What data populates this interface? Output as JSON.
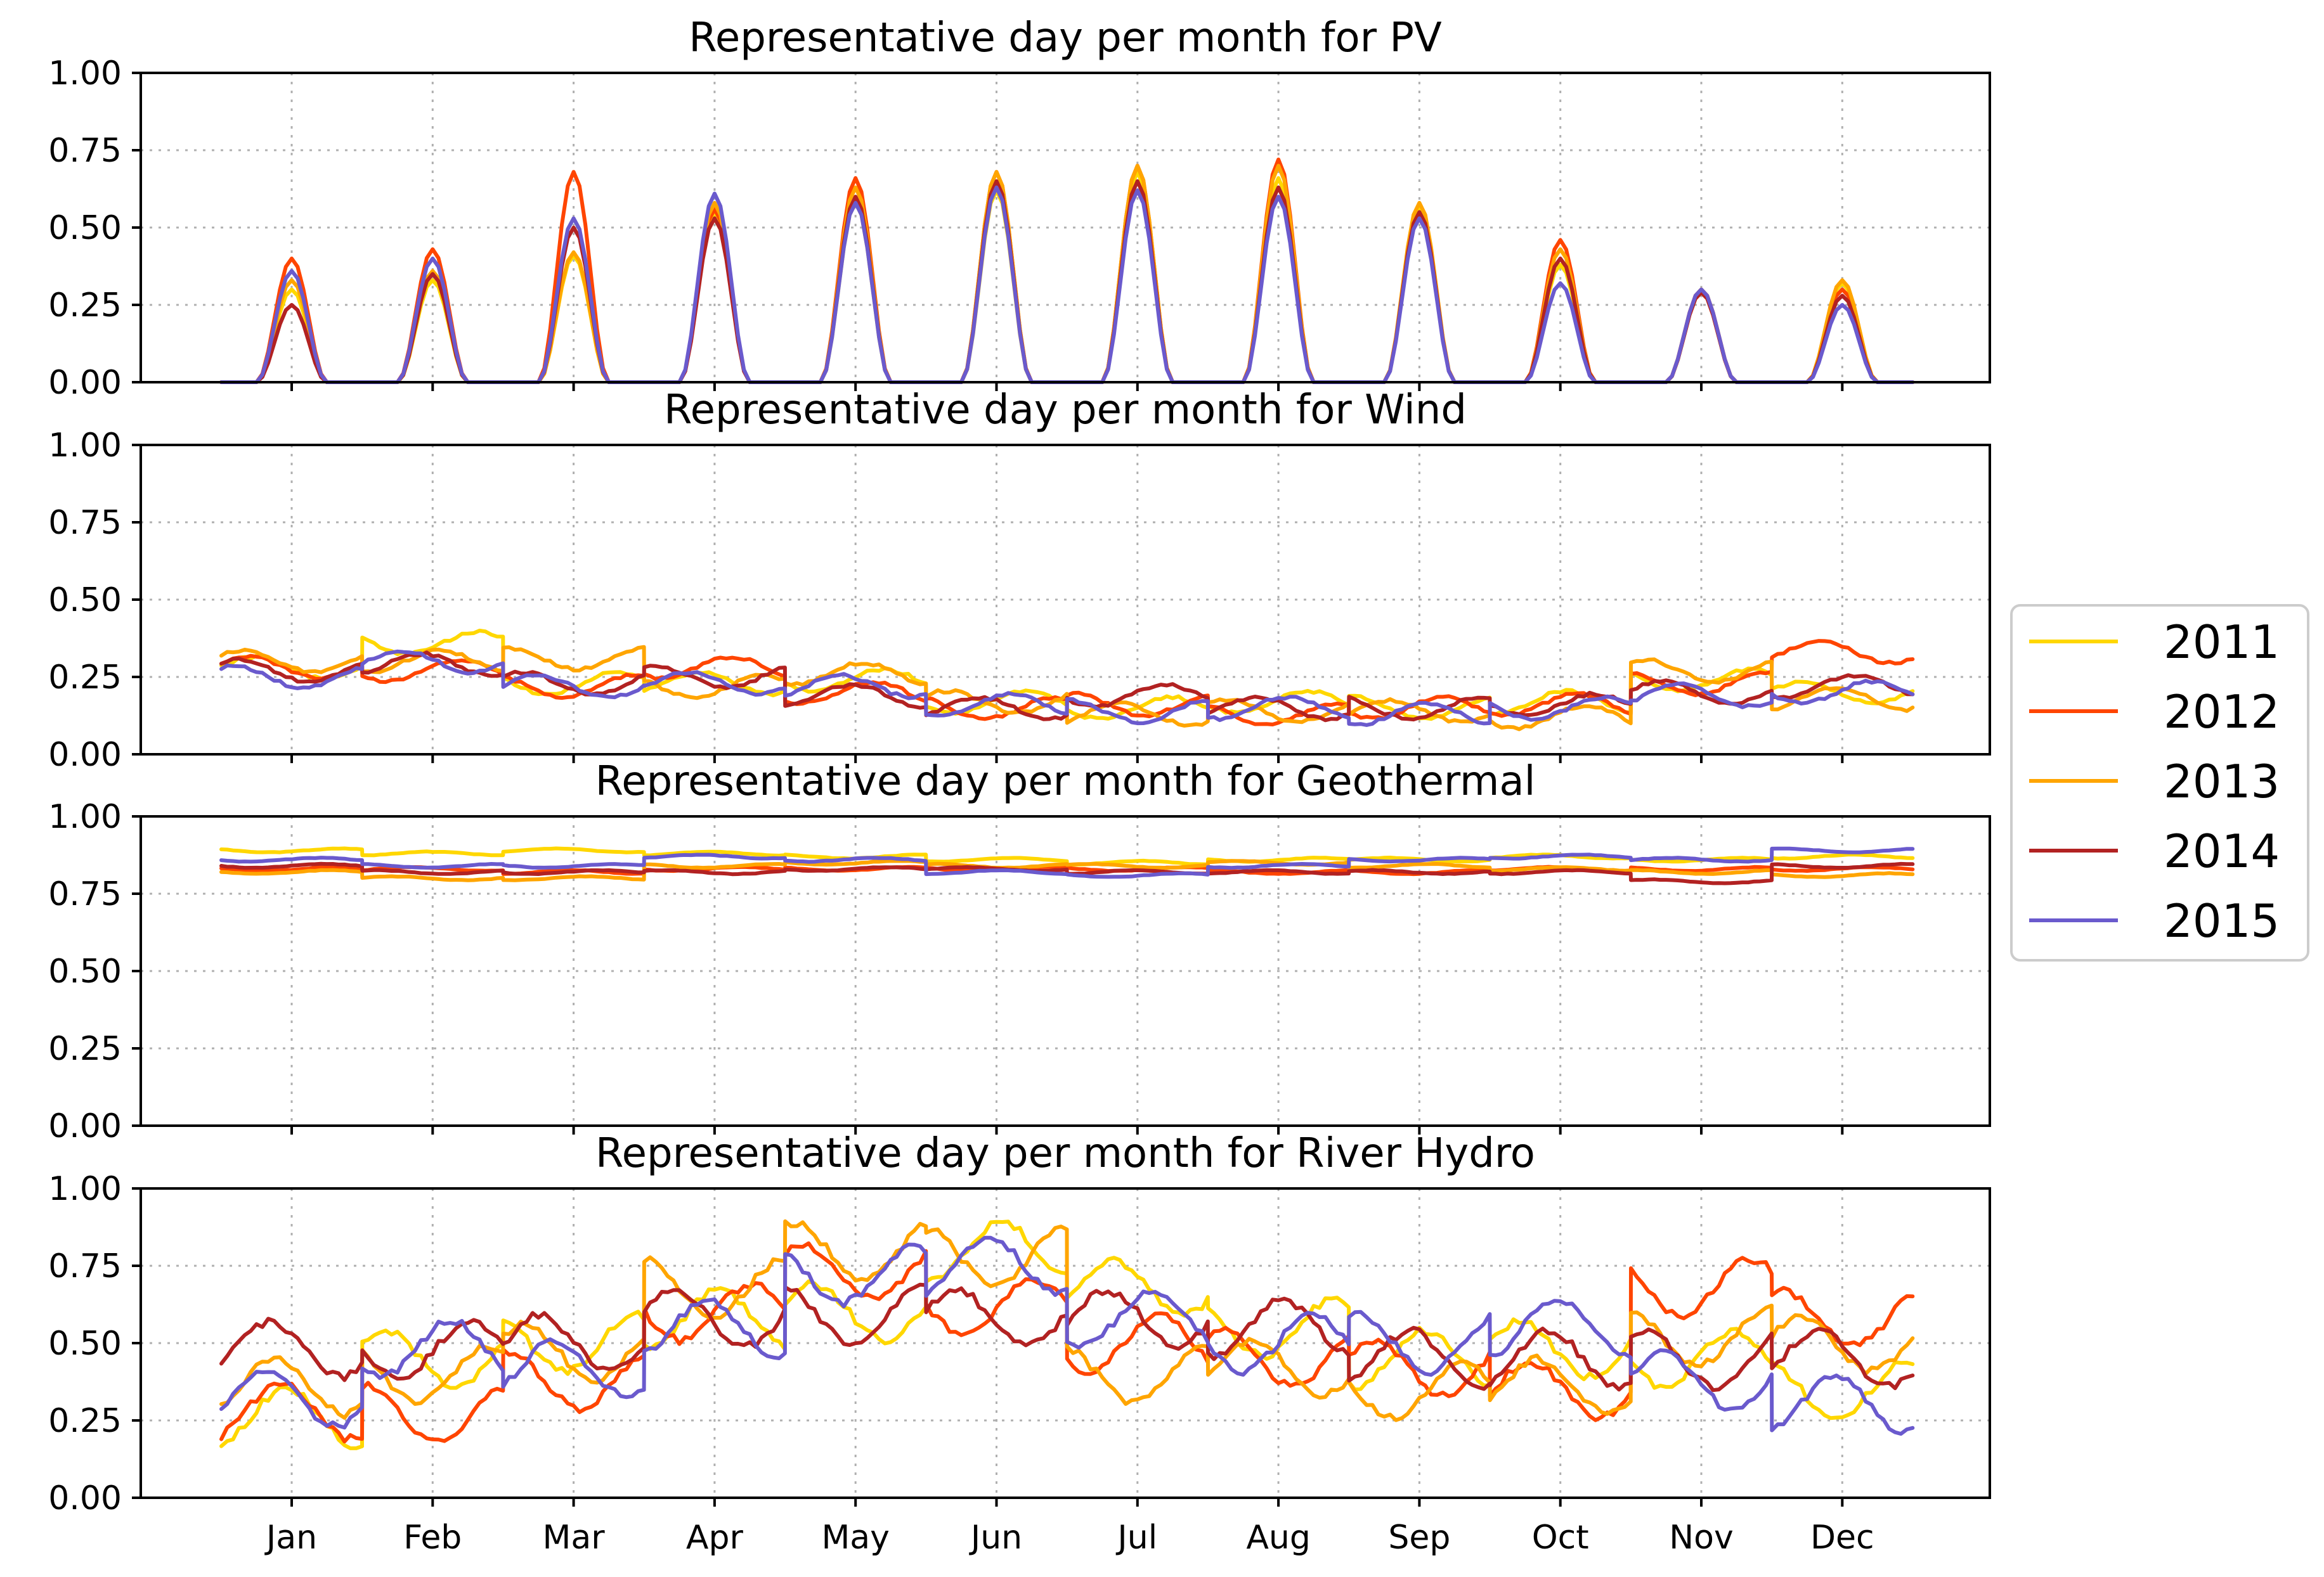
{
  "colors": {
    "2011": "#ffd700",
    "2012": "#ff4500",
    "2013": "#ffa500",
    "2014": "#b22222",
    "2015": "#6a5acd"
  },
  "chart_data": [
    {
      "type": "line",
      "title": "Representative day per month for PV",
      "kind": "pv",
      "ylim": [
        0,
        1
      ],
      "yticks": [
        "0.00",
        "0.25",
        "0.50",
        "0.75",
        "1.00"
      ],
      "months": [
        "Jan",
        "Feb",
        "Mar",
        "Apr",
        "May",
        "Jun",
        "Jul",
        "Aug",
        "Sep",
        "Oct",
        "Nov",
        "Dec"
      ],
      "show_xlabels": false,
      "series": [
        {
          "name": "2011",
          "peaks": [
            0.3,
            0.33,
            0.41,
            0.55,
            0.58,
            0.62,
            0.68,
            0.66,
            0.57,
            0.38,
            0.3,
            0.32
          ]
        },
        {
          "name": "2012",
          "peaks": [
            0.4,
            0.43,
            0.68,
            0.56,
            0.66,
            0.68,
            0.7,
            0.72,
            0.55,
            0.46,
            0.3,
            0.3
          ]
        },
        {
          "name": "2013",
          "peaks": [
            0.33,
            0.36,
            0.42,
            0.58,
            0.63,
            0.68,
            0.7,
            0.7,
            0.58,
            0.43,
            0.29,
            0.33
          ]
        },
        {
          "name": "2014",
          "peaks": [
            0.25,
            0.35,
            0.5,
            0.53,
            0.6,
            0.65,
            0.65,
            0.63,
            0.55,
            0.4,
            0.29,
            0.28
          ]
        },
        {
          "name": "2015",
          "peaks": [
            0.36,
            0.4,
            0.53,
            0.61,
            0.58,
            0.63,
            0.62,
            0.6,
            0.53,
            0.32,
            0.3,
            0.25
          ]
        }
      ]
    },
    {
      "type": "line",
      "title": "Representative day per month for Wind",
      "kind": "wind",
      "ylim": [
        0,
        1
      ],
      "yticks": [
        "0.00",
        "0.25",
        "0.50",
        "0.75",
        "1.00"
      ],
      "months": [
        "Jan",
        "Feb",
        "Mar",
        "Apr",
        "May",
        "Jun",
        "Jul",
        "Aug",
        "Sep",
        "Oct",
        "Nov",
        "Dec"
      ],
      "show_xlabels": false,
      "series": [
        {
          "name": "2011",
          "values": [
            0.28,
            0.36,
            0.23,
            0.23,
            0.24,
            0.17,
            0.15,
            0.17,
            0.15,
            0.17,
            0.24,
            0.2
          ]
        },
        {
          "name": "2012",
          "values": [
            0.28,
            0.27,
            0.22,
            0.28,
            0.2,
            0.15,
            0.16,
            0.13,
            0.15,
            0.16,
            0.23,
            0.33
          ]
        },
        {
          "name": "2013",
          "values": [
            0.3,
            0.3,
            0.31,
            0.22,
            0.26,
            0.17,
            0.13,
            0.14,
            0.14,
            0.12,
            0.27,
            0.18
          ]
        },
        {
          "name": "2014",
          "values": [
            0.27,
            0.29,
            0.23,
            0.25,
            0.19,
            0.15,
            0.19,
            0.15,
            0.15,
            0.16,
            0.2,
            0.22
          ]
        },
        {
          "name": "2015",
          "values": [
            0.25,
            0.3,
            0.22,
            0.23,
            0.22,
            0.16,
            0.14,
            0.15,
            0.13,
            0.15,
            0.19,
            0.2
          ]
        }
      ]
    },
    {
      "type": "line",
      "title": "Representative day per month for Geothermal",
      "kind": "geo",
      "ylim": [
        0,
        1
      ],
      "yticks": [
        "0.00",
        "0.25",
        "0.50",
        "0.75",
        "1.00"
      ],
      "months": [
        "Jan",
        "Feb",
        "Mar",
        "Apr",
        "May",
        "Jun",
        "Jul",
        "Aug",
        "Sep",
        "Oct",
        "Nov",
        "Dec"
      ],
      "show_xlabels": false,
      "series": [
        {
          "name": "2011",
          "values": [
            0.89,
            0.88,
            0.89,
            0.88,
            0.87,
            0.86,
            0.85,
            0.86,
            0.86,
            0.87,
            0.86,
            0.87
          ]
        },
        {
          "name": "2012",
          "values": [
            0.83,
            0.83,
            0.82,
            0.83,
            0.83,
            0.83,
            0.83,
            0.82,
            0.82,
            0.83,
            0.83,
            0.83
          ]
        },
        {
          "name": "2013",
          "values": [
            0.82,
            0.8,
            0.8,
            0.84,
            0.85,
            0.84,
            0.84,
            0.85,
            0.84,
            0.83,
            0.82,
            0.81
          ]
        },
        {
          "name": "2014",
          "values": [
            0.84,
            0.82,
            0.82,
            0.82,
            0.83,
            0.83,
            0.82,
            0.82,
            0.82,
            0.82,
            0.79,
            0.84
          ]
        },
        {
          "name": "2015",
          "values": [
            0.86,
            0.84,
            0.84,
            0.87,
            0.86,
            0.82,
            0.81,
            0.84,
            0.86,
            0.87,
            0.86,
            0.89
          ]
        }
      ]
    },
    {
      "type": "line",
      "title": "Representative day per month for River Hydro",
      "kind": "hydro",
      "ylim": [
        0,
        1
      ],
      "yticks": [
        "0.00",
        "0.25",
        "0.50",
        "0.75",
        "1.00"
      ],
      "months": [
        "Jan",
        "Feb",
        "Mar",
        "Apr",
        "May",
        "Jun",
        "Jul",
        "Aug",
        "Sep",
        "Oct",
        "Nov",
        "Dec"
      ],
      "show_xlabels": true,
      "series": [
        {
          "name": "2011",
          "values": [
            0.26,
            0.45,
            0.5,
            0.58,
            0.6,
            0.8,
            0.68,
            0.55,
            0.45,
            0.48,
            0.45,
            0.35
          ]
        },
        {
          "name": "2012",
          "values": [
            0.28,
            0.27,
            0.38,
            0.6,
            0.73,
            0.62,
            0.5,
            0.45,
            0.42,
            0.35,
            0.68,
            0.58
          ]
        },
        {
          "name": "2013",
          "values": [
            0.36,
            0.4,
            0.47,
            0.68,
            0.8,
            0.78,
            0.4,
            0.42,
            0.35,
            0.36,
            0.52,
            0.5
          ]
        },
        {
          "name": "2014",
          "values": [
            0.48,
            0.48,
            0.5,
            0.58,
            0.59,
            0.58,
            0.58,
            0.55,
            0.45,
            0.45,
            0.45,
            0.45
          ]
        },
        {
          "name": "2015",
          "values": [
            0.32,
            0.48,
            0.42,
            0.55,
            0.72,
            0.75,
            0.58,
            0.5,
            0.5,
            0.55,
            0.38,
            0.3
          ]
        }
      ]
    }
  ],
  "legend": {
    "entries": [
      "2011",
      "2012",
      "2013",
      "2014",
      "2015"
    ]
  }
}
